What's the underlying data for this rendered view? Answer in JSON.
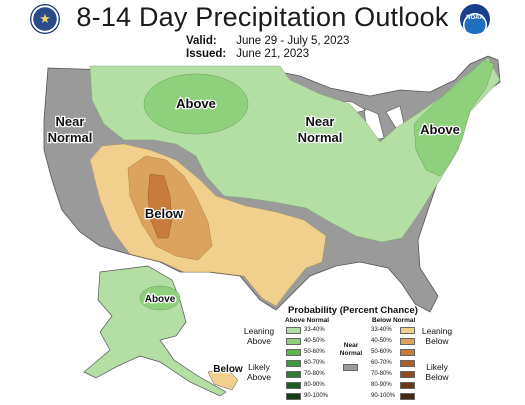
{
  "header": {
    "title": "8-14 Day Precipitation Outlook",
    "valid_key": "Valid:",
    "valid_value": "June 29 - July 5, 2023",
    "issued_key": "Issued:",
    "issued_value": "June 21, 2023",
    "noaa_logo_text": "NOAA"
  },
  "map_labels": {
    "above_north": "Above",
    "above_northeast": "Above",
    "above_alaska": "Above",
    "near_normal_west_1": "Near",
    "near_normal_west_2": "Normal",
    "near_normal_mid_1": "Near",
    "near_normal_mid_2": "Normal",
    "below_southwest": "Below",
    "below_inset": "Below"
  },
  "legend": {
    "title": "Probability (Percent Chance)",
    "above_header": "Above Normal",
    "below_header": "Below Normal",
    "near_header_1": "Near",
    "near_header_2": "Normal",
    "leaning_above_1": "Leaning",
    "leaning_above_2": "Above",
    "likely_above_1": "Likely",
    "likely_above_2": "Above",
    "leaning_below_1": "Leaning",
    "leaning_below_2": "Below",
    "likely_below_1": "Likely",
    "likely_below_2": "Below",
    "above_bins": [
      {
        "label": "33-40%",
        "color": "#b3dea4"
      },
      {
        "label": "40-50%",
        "color": "#8fd07d"
      },
      {
        "label": "50-60%",
        "color": "#5db84c"
      },
      {
        "label": "60-70%",
        "color": "#3b9a3b"
      },
      {
        "label": "70-80%",
        "color": "#2c7a32"
      },
      {
        "label": "80-90%",
        "color": "#1f5a26"
      },
      {
        "label": "90-100%",
        "color": "#143d17"
      }
    ],
    "below_bins": [
      {
        "label": "33-40%",
        "color": "#f0d08c"
      },
      {
        "label": "40-50%",
        "color": "#dba35e"
      },
      {
        "label": "50-60%",
        "color": "#c87c3c"
      },
      {
        "label": "60-70%",
        "color": "#a95f2c"
      },
      {
        "label": "70-80%",
        "color": "#8a4a22"
      },
      {
        "label": "80-90%",
        "color": "#6a3818"
      },
      {
        "label": "90-100%",
        "color": "#4a2810"
      }
    ],
    "near_color": "#9a9a9a"
  },
  "colors": {
    "land_base": "#9a9a9a",
    "above_light": "#b3dea4",
    "above_mid": "#8fd07d",
    "below_light": "#f0d08c",
    "below_mid": "#dba35e",
    "below_dark": "#c87c3c",
    "water": "#ffffff"
  }
}
